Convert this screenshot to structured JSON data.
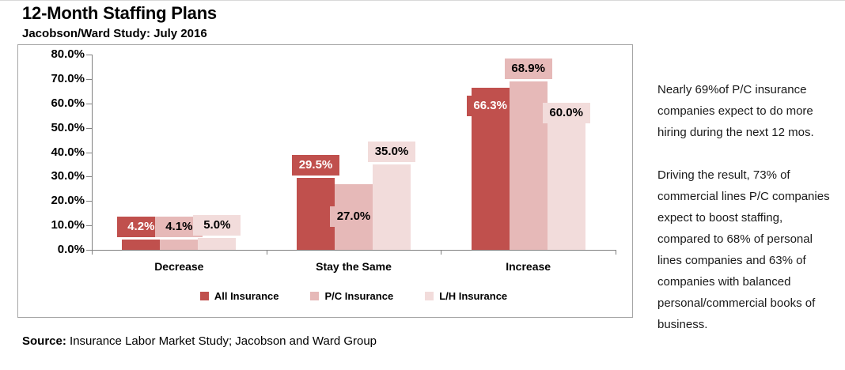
{
  "header": {
    "title": "12-Month Staffing Plans",
    "subtitle": "Jacobson/Ward Study: July 2016"
  },
  "chart_data": {
    "type": "bar",
    "categories": [
      "Decrease",
      "Stay the Same",
      "Increase"
    ],
    "series": [
      {
        "name": "All Insurance",
        "color": "#C0504D",
        "label_text_color": "#FFFFFF",
        "values": [
          4.2,
          29.5,
          66.3
        ],
        "labels": [
          "4.2%",
          "29.5%",
          "66.3%"
        ],
        "label_pos": [
          "above",
          "above",
          "inside"
        ]
      },
      {
        "name": "P/C Insurance",
        "color": "#E6B9B8",
        "label_text_color": "#000000",
        "values": [
          4.1,
          27.0,
          68.9
        ],
        "labels": [
          "4.1%",
          "27.0%",
          "68.9%"
        ],
        "label_pos": [
          "above",
          "center",
          "above"
        ]
      },
      {
        "name": "L/H Insurance",
        "color": "#F2DCDB",
        "label_text_color": "#000000",
        "values": [
          5.0,
          35.0,
          60.0
        ],
        "labels": [
          "5.0%",
          "35.0%",
          "60.0%"
        ],
        "label_pos": [
          "above",
          "above",
          "top"
        ]
      }
    ],
    "ylim": [
      0,
      80
    ],
    "yticks": [
      "80.0%",
      "70.0%",
      "60.0%",
      "50.0%",
      "40.0%",
      "30.0%",
      "20.0%",
      "10.0%",
      "0.0%"
    ],
    "grid": false,
    "legend_position": "bottom-center",
    "axis_color": "#808080"
  },
  "annotation": {
    "para1": "Nearly 69%of P/C insurance companies expect to do more hiring during the next 12 mos.",
    "para2": "Driving the result, 73% of commercial lines P/C companies expect to boost staffing, compared to 68% of personal lines companies and 63% of companies with balanced personal/commercial books of business."
  },
  "source": {
    "label": "Source:",
    "text": " Insurance Labor Market Study; Jacobson and Ward Group"
  }
}
